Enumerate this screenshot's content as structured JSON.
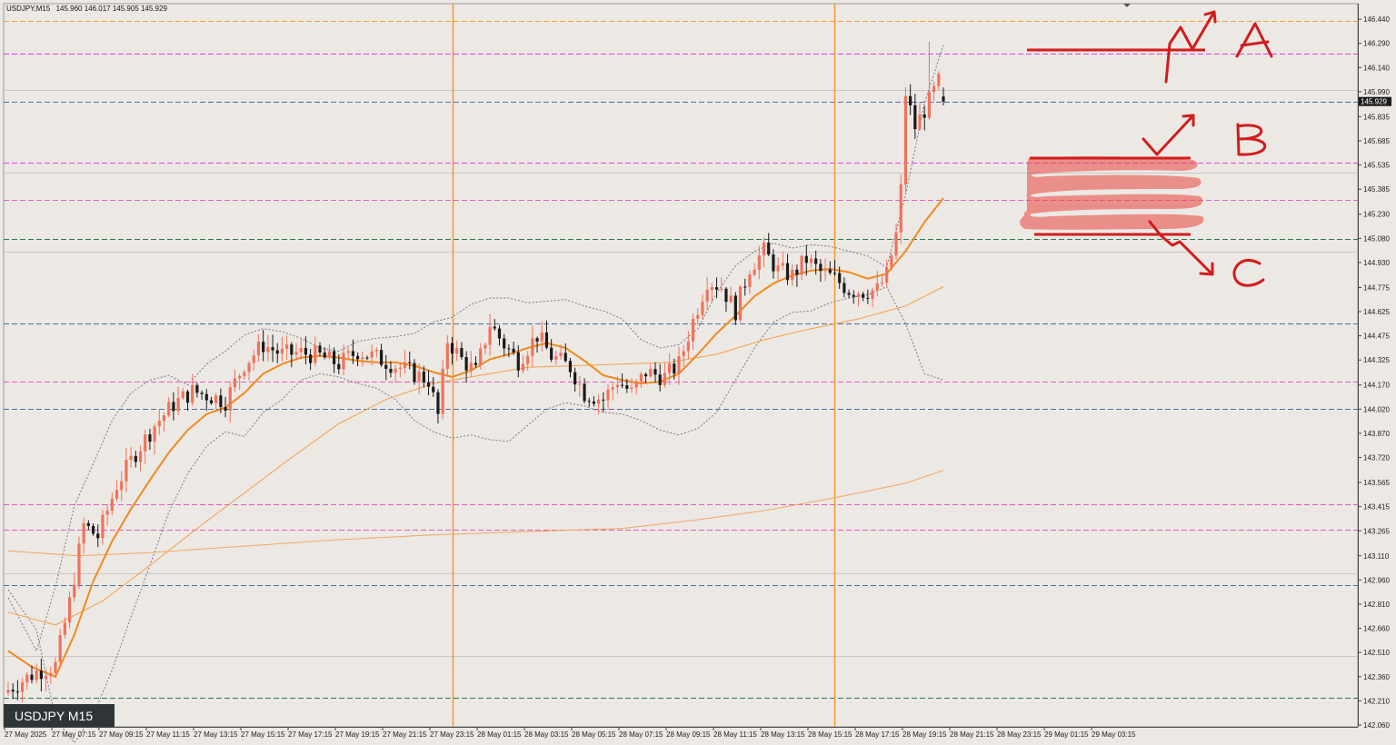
{
  "header": {
    "symbol": "USDJPY,M15",
    "ohlc": "145.960 146.017 145.905 145.929"
  },
  "symbol_label": "USDJPY M15",
  "chart_data": {
    "type": "candlestick",
    "symbol": "USDJPY",
    "timeframe": "M15",
    "y_range": [
      142.06,
      146.48
    ],
    "y_ticks": [
      "146.440",
      "146.290",
      "146.140",
      "145.990",
      "145.835",
      "145.685",
      "145.535",
      "145.385",
      "145.230",
      "145.080",
      "144.930",
      "144.775",
      "144.625",
      "144.475",
      "144.325",
      "144.170",
      "144.020",
      "143.870",
      "143.720",
      "143.565",
      "143.415",
      "143.265",
      "143.110",
      "142.960",
      "142.810",
      "142.660",
      "142.510",
      "142.360",
      "142.210",
      "142.060"
    ],
    "x_ticks": [
      "27 May 2025",
      "27 May 07:15",
      "27 May 09:15",
      "27 May 11:15",
      "27 May 13:15",
      "27 May 15:15",
      "27 May 17:15",
      "27 May 19:15",
      "27 May 21:15",
      "27 May 23:15",
      "28 May 01:15",
      "28 May 03:15",
      "28 May 05:15",
      "28 May 07:15",
      "28 May 09:15",
      "28 May 11:15",
      "28 May 13:15",
      "28 May 15:15",
      "28 May 17:15",
      "28 May 19:15",
      "28 May 21:15",
      "28 May 23:15",
      "29 May 01:15",
      "29 May 03:15"
    ],
    "current_price": "145.929",
    "bull_color": "#f0735a",
    "bear_color": "#1a1a1a",
    "anchors": [
      [
        0,
        142.28
      ],
      [
        6,
        142.39
      ],
      [
        10,
        142.43
      ],
      [
        13,
        142.82
      ],
      [
        16,
        143.3
      ],
      [
        19,
        143.23
      ],
      [
        23,
        143.55
      ],
      [
        27,
        143.75
      ],
      [
        31,
        143.92
      ],
      [
        35,
        144.05
      ],
      [
        39,
        144.13
      ],
      [
        43,
        144.1
      ],
      [
        46,
        144.07
      ],
      [
        50,
        144.3
      ],
      [
        54,
        144.42
      ],
      [
        58,
        144.36
      ],
      [
        62,
        144.37
      ],
      [
        66,
        144.35
      ],
      [
        70,
        144.3
      ],
      [
        74,
        144.38
      ],
      [
        78,
        144.34
      ],
      [
        82,
        144.29
      ],
      [
        86,
        144.24
      ],
      [
        89,
        144.2
      ],
      [
        91,
        143.98
      ],
      [
        93,
        144.45
      ],
      [
        96,
        144.33
      ],
      [
        99,
        144.25
      ],
      [
        102,
        144.55
      ],
      [
        105,
        144.42
      ],
      [
        108,
        144.32
      ],
      [
        112,
        144.48
      ],
      [
        115,
        144.35
      ],
      [
        119,
        144.28
      ],
      [
        122,
        144.12
      ],
      [
        126,
        144.08
      ],
      [
        129,
        144.2
      ],
      [
        132,
        144.12
      ],
      [
        135,
        144.25
      ],
      [
        139,
        144.22
      ],
      [
        142,
        144.3
      ],
      [
        145,
        144.57
      ],
      [
        148,
        144.82
      ],
      [
        151,
        144.78
      ],
      [
        154,
        144.63
      ],
      [
        157,
        144.9
      ],
      [
        160,
        145.0
      ],
      [
        163,
        144.88
      ],
      [
        166,
        144.85
      ],
      [
        169,
        144.95
      ],
      [
        172,
        144.87
      ],
      [
        175,
        144.83
      ],
      [
        178,
        144.76
      ],
      [
        181,
        144.75
      ],
      [
        184,
        144.76
      ],
      [
        186,
        144.85
      ],
      [
        188,
        145.1
      ],
      [
        189,
        145.38
      ],
      [
        190,
        145.98
      ],
      [
        192,
        145.77
      ],
      [
        195,
        145.93
      ],
      [
        197,
        146.05
      ],
      [
        198,
        145.929
      ]
    ],
    "sma_points": [
      [
        0,
        142.52
      ],
      [
        5,
        142.42
      ],
      [
        10,
        142.36
      ],
      [
        14,
        142.62
      ],
      [
        18,
        142.95
      ],
      [
        22,
        143.2
      ],
      [
        26,
        143.4
      ],
      [
        30,
        143.58
      ],
      [
        34,
        143.75
      ],
      [
        38,
        143.89
      ],
      [
        42,
        143.99
      ],
      [
        46,
        144.03
      ],
      [
        50,
        144.12
      ],
      [
        54,
        144.24
      ],
      [
        58,
        144.3
      ],
      [
        62,
        144.34
      ],
      [
        66,
        144.35
      ],
      [
        70,
        144.34
      ],
      [
        74,
        144.32
      ],
      [
        78,
        144.31
      ],
      [
        82,
        144.31
      ],
      [
        86,
        144.29
      ],
      [
        90,
        144.25
      ],
      [
        94,
        144.22
      ],
      [
        98,
        144.26
      ],
      [
        102,
        144.33
      ],
      [
        106,
        144.36
      ],
      [
        110,
        144.4
      ],
      [
        114,
        144.43
      ],
      [
        118,
        144.4
      ],
      [
        122,
        144.32
      ],
      [
        126,
        144.23
      ],
      [
        130,
        144.2
      ],
      [
        134,
        144.18
      ],
      [
        138,
        144.19
      ],
      [
        142,
        144.24
      ],
      [
        146,
        144.36
      ],
      [
        150,
        144.49
      ],
      [
        154,
        144.6
      ],
      [
        158,
        144.72
      ],
      [
        162,
        144.8
      ],
      [
        166,
        144.85
      ],
      [
        170,
        144.88
      ],
      [
        174,
        144.89
      ],
      [
        178,
        144.87
      ],
      [
        182,
        144.83
      ],
      [
        186,
        144.86
      ],
      [
        190,
        145.0
      ],
      [
        194,
        145.18
      ],
      [
        198,
        145.33
      ]
    ],
    "ema_points": [
      [
        0,
        142.76
      ],
      [
        10,
        142.68
      ],
      [
        20,
        142.83
      ],
      [
        30,
        143.05
      ],
      [
        40,
        143.28
      ],
      [
        50,
        143.5
      ],
      [
        60,
        143.72
      ],
      [
        70,
        143.93
      ],
      [
        80,
        144.08
      ],
      [
        90,
        144.18
      ],
      [
        100,
        144.23
      ],
      [
        110,
        144.28
      ],
      [
        120,
        144.29
      ],
      [
        130,
        144.3
      ],
      [
        140,
        144.31
      ],
      [
        150,
        144.36
      ],
      [
        160,
        144.45
      ],
      [
        170,
        144.52
      ],
      [
        180,
        144.58
      ],
      [
        190,
        144.66
      ],
      [
        198,
        144.78
      ]
    ],
    "sma200_points": [
      [
        0,
        143.14
      ],
      [
        15,
        143.11
      ],
      [
        30,
        143.13
      ],
      [
        50,
        143.17
      ],
      [
        70,
        143.21
      ],
      [
        90,
        143.24
      ],
      [
        110,
        143.26
      ],
      [
        130,
        143.28
      ],
      [
        145,
        143.33
      ],
      [
        160,
        143.39
      ],
      [
        175,
        143.47
      ],
      [
        190,
        143.56
      ],
      [
        198,
        143.64
      ]
    ],
    "bb_upper": [
      [
        0,
        142.85
      ],
      [
        6,
        142.52
      ],
      [
        10,
        142.92
      ],
      [
        14,
        143.42
      ],
      [
        18,
        143.68
      ],
      [
        22,
        143.95
      ],
      [
        26,
        144.12
      ],
      [
        30,
        144.2
      ],
      [
        34,
        144.23
      ],
      [
        38,
        144.17
      ],
      [
        42,
        144.3
      ],
      [
        46,
        144.38
      ],
      [
        50,
        144.48
      ],
      [
        54,
        144.52
      ],
      [
        58,
        144.5
      ],
      [
        62,
        144.46
      ],
      [
        66,
        144.4
      ],
      [
        70,
        144.38
      ],
      [
        74,
        144.44
      ],
      [
        78,
        144.46
      ],
      [
        82,
        144.47
      ],
      [
        86,
        144.49
      ],
      [
        90,
        144.56
      ],
      [
        94,
        144.59
      ],
      [
        98,
        144.67
      ],
      [
        102,
        144.71
      ],
      [
        106,
        144.71
      ],
      [
        110,
        144.68
      ],
      [
        114,
        144.69
      ],
      [
        118,
        144.7
      ],
      [
        122,
        144.66
      ],
      [
        126,
        144.63
      ],
      [
        130,
        144.58
      ],
      [
        134,
        144.45
      ],
      [
        138,
        144.4
      ],
      [
        142,
        144.42
      ],
      [
        146,
        144.52
      ],
      [
        150,
        144.74
      ],
      [
        154,
        144.91
      ],
      [
        158,
        145.0
      ],
      [
        162,
        145.05
      ],
      [
        166,
        145.02
      ],
      [
        170,
        145.04
      ],
      [
        174,
        145.03
      ],
      [
        178,
        145.0
      ],
      [
        182,
        144.97
      ],
      [
        186,
        144.9
      ],
      [
        190,
        145.35
      ],
      [
        194,
        145.92
      ],
      [
        198,
        146.28
      ]
    ],
    "bb_lower": [
      [
        0,
        142.9
      ],
      [
        6,
        142.65
      ],
      [
        10,
        142.1
      ],
      [
        14,
        141.95
      ],
      [
        18,
        142.12
      ],
      [
        22,
        142.4
      ],
      [
        26,
        142.73
      ],
      [
        30,
        143.05
      ],
      [
        34,
        143.38
      ],
      [
        38,
        143.62
      ],
      [
        42,
        143.79
      ],
      [
        46,
        143.88
      ],
      [
        50,
        143.85
      ],
      [
        54,
        144.0
      ],
      [
        58,
        144.08
      ],
      [
        62,
        144.2
      ],
      [
        66,
        144.24
      ],
      [
        70,
        144.22
      ],
      [
        74,
        144.18
      ],
      [
        78,
        144.15
      ],
      [
        82,
        144.08
      ],
      [
        86,
        143.95
      ],
      [
        90,
        143.88
      ],
      [
        94,
        143.84
      ],
      [
        98,
        143.86
      ],
      [
        102,
        143.83
      ],
      [
        106,
        143.82
      ],
      [
        110,
        143.92
      ],
      [
        114,
        144.02
      ],
      [
        118,
        144.06
      ],
      [
        122,
        144.04
      ],
      [
        126,
        144.0
      ],
      [
        130,
        143.99
      ],
      [
        134,
        143.95
      ],
      [
        138,
        143.89
      ],
      [
        142,
        143.86
      ],
      [
        146,
        143.9
      ],
      [
        150,
        144.0
      ],
      [
        154,
        144.2
      ],
      [
        158,
        144.4
      ],
      [
        162,
        144.56
      ],
      [
        166,
        144.62
      ],
      [
        170,
        144.63
      ],
      [
        174,
        144.68
      ],
      [
        178,
        144.71
      ],
      [
        182,
        144.73
      ],
      [
        186,
        144.78
      ],
      [
        190,
        144.55
      ],
      [
        194,
        144.24
      ],
      [
        198,
        144.2
      ]
    ],
    "hlines": [
      {
        "price": 146.43,
        "color": "#f2a33a"
      },
      {
        "price": 146.225,
        "color": "#e040e0"
      },
      {
        "price": 146.0,
        "color": "#c8c8c8",
        "solid": true
      },
      {
        "price": 145.93,
        "color": "#4d6fa0"
      },
      {
        "price": 145.55,
        "color": "#e040e0"
      },
      {
        "price": 145.49,
        "color": "#c8c8c8",
        "solid": true
      },
      {
        "price": 145.32,
        "color": "#e060b8"
      },
      {
        "price": 145.075,
        "color": "#2e7a4d"
      },
      {
        "price": 145.0,
        "color": "#c8c8c8",
        "solid": true
      },
      {
        "price": 144.55,
        "color": "#4d6fa0"
      },
      {
        "price": 144.19,
        "color": "#e060b8"
      },
      {
        "price": 144.02,
        "color": "#4d6fa0"
      },
      {
        "price": 143.43,
        "color": "#e060b8"
      },
      {
        "price": 143.27,
        "color": "#e060b8"
      },
      {
        "price": 143.0,
        "color": "#c8c8c8",
        "solid": true
      },
      {
        "price": 142.93,
        "color": "#4d6fa0"
      },
      {
        "price": 142.49,
        "color": "#c8c8c8",
        "solid": true
      },
      {
        "price": 142.23,
        "color": "#2e7a4d"
      }
    ],
    "vlines": [
      94,
      175
    ],
    "annotations": [
      "A",
      "B",
      "C"
    ]
  }
}
